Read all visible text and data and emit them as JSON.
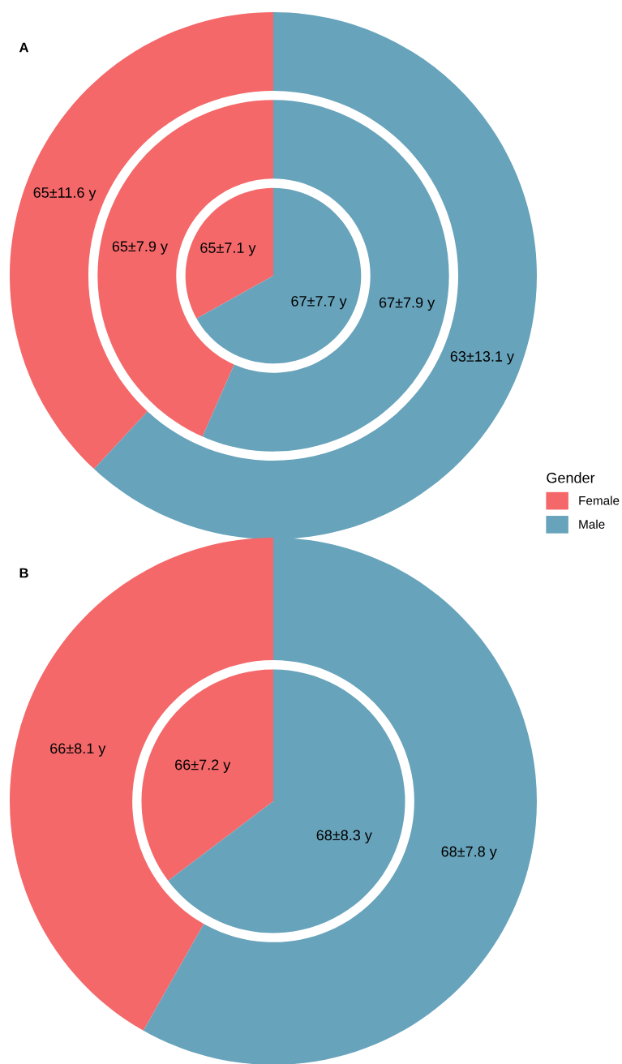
{
  "chart_data": [
    {
      "type": "pie",
      "title": "A",
      "categories": [
        "Female",
        "Male"
      ],
      "colors": [
        "#f4686a",
        "#67a3bb"
      ],
      "legend": "right",
      "legend_title": "Gender",
      "series": [
        {
          "values": [
            33.1,
            66.9
          ]
        },
        {
          "values": [
            43.4,
            56.6
          ]
        },
        {
          "values": [
            38.1,
            61.9
          ]
        }
      ],
      "annotations": [
        "65±7.1 y",
        "67±7.7 y",
        "65±7.9 y",
        "67±7.9 y",
        "65±11.6 y",
        "63±13.1 y"
      ]
    },
    {
      "type": "pie",
      "title": "B",
      "categories": [
        null,
        null
      ],
      "colors": [
        "#f4686a",
        "#67a3bb"
      ],
      "series": [
        {
          "values": [
            35.3,
            64.7
          ]
        },
        {
          "values": [
            41.8,
            58.2
          ]
        }
      ],
      "annotations": [
        "66±7.2 y",
        "68±8.3 y",
        "66±8.1 y",
        "68±7.8 y"
      ]
    }
  ]
}
